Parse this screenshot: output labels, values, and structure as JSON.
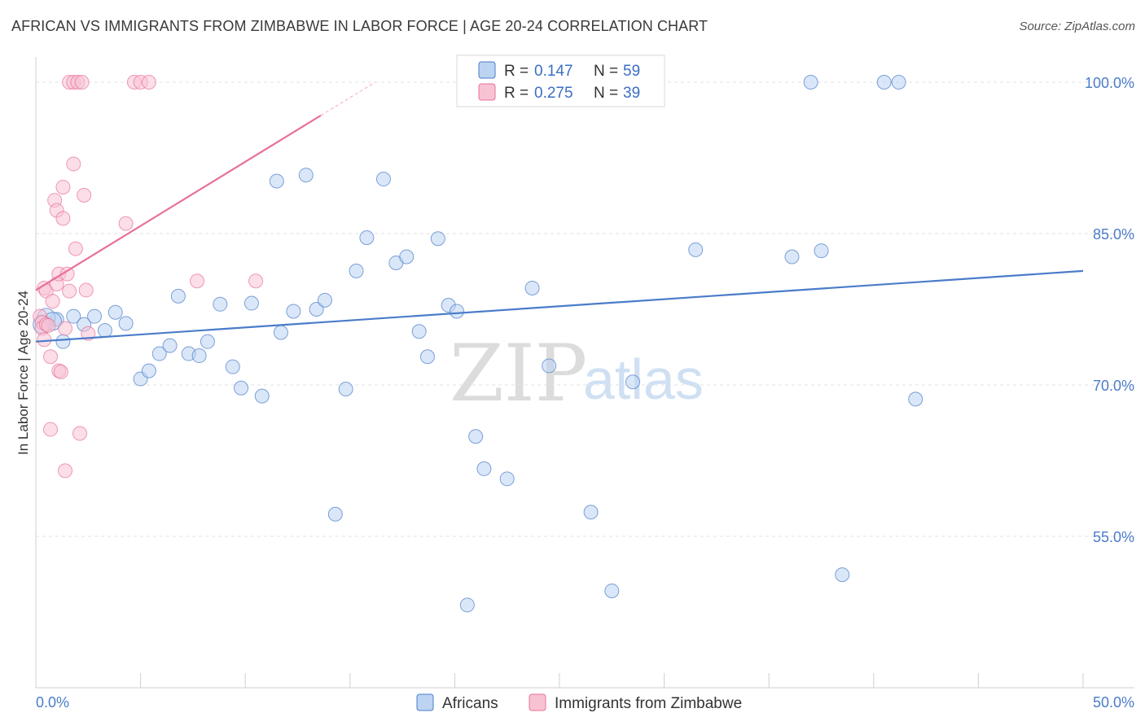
{
  "title": "AFRICAN VS IMMIGRANTS FROM ZIMBABWE IN LABOR FORCE | AGE 20-24 CORRELATION CHART",
  "source": "Source: ZipAtlas.com",
  "watermark": {
    "part1": "ZIP",
    "part2": "atlas"
  },
  "colors": {
    "blue": "#4a7cc9",
    "blue_fill": "#bcd4f2",
    "pink": "#e8729a",
    "pink_fill": "#f7c3d3"
  },
  "chart_data": {
    "type": "scatter",
    "title": "AFRICAN VS IMMIGRANTS FROM ZIMBABWE IN LABOR FORCE | AGE 20-24 CORRELATION CHART",
    "xlabel": "",
    "ylabel": "In Labor Force | Age 20-24",
    "xlim": [
      0,
      50
    ],
    "ylim": [
      40,
      102.5
    ],
    "x_tick_labels": [
      "0.0%",
      "50.0%"
    ],
    "y_ticks": [
      55,
      70,
      85,
      100
    ],
    "y_tick_labels": [
      "55.0%",
      "70.0%",
      "85.0%",
      "100.0%"
    ],
    "grid": true,
    "legend": {
      "position": "top-center",
      "entries": [
        {
          "series": "Africans",
          "r_label": "R =",
          "r": "0.147",
          "n_label": "N =",
          "n": "59"
        },
        {
          "series": "Immigrants from Zimbabwe",
          "r_label": "R =",
          "r": "0.275",
          "n_label": "N =",
          "n": "39"
        }
      ]
    },
    "bottom_legend": [
      "Africans",
      "Immigrants from Zimbabwe"
    ],
    "series": [
      {
        "name": "Africans",
        "color": "#4a7cc9",
        "trend": {
          "x": [
            0,
            50
          ],
          "y": [
            74.3,
            81.3
          ]
        },
        "points": [
          [
            1.0,
            76.5
          ],
          [
            1.3,
            74.3
          ],
          [
            1.8,
            76.8
          ],
          [
            2.3,
            76.0
          ],
          [
            2.8,
            76.8
          ],
          [
            3.3,
            75.4
          ],
          [
            3.8,
            77.2
          ],
          [
            4.3,
            76.1
          ],
          [
            5.0,
            70.6
          ],
          [
            5.4,
            71.4
          ],
          [
            5.9,
            73.1
          ],
          [
            6.4,
            73.9
          ],
          [
            6.8,
            78.8
          ],
          [
            7.3,
            73.1
          ],
          [
            7.8,
            72.9
          ],
          [
            8.2,
            74.3
          ],
          [
            8.8,
            78.0
          ],
          [
            9.4,
            71.8
          ],
          [
            9.8,
            69.7
          ],
          [
            10.3,
            78.1
          ],
          [
            10.8,
            68.9
          ],
          [
            11.5,
            90.2
          ],
          [
            11.7,
            75.2
          ],
          [
            12.3,
            77.3
          ],
          [
            12.9,
            90.8
          ],
          [
            13.4,
            77.5
          ],
          [
            13.8,
            78.4
          ],
          [
            14.3,
            57.2
          ],
          [
            14.8,
            69.6
          ],
          [
            15.3,
            81.3
          ],
          [
            15.8,
            84.6
          ],
          [
            16.6,
            90.4
          ],
          [
            17.2,
            82.1
          ],
          [
            17.7,
            82.7
          ],
          [
            18.3,
            75.3
          ],
          [
            18.7,
            72.8
          ],
          [
            19.2,
            84.5
          ],
          [
            19.7,
            77.9
          ],
          [
            20.1,
            77.3
          ],
          [
            20.6,
            48.2
          ],
          [
            21.0,
            64.9
          ],
          [
            21.4,
            61.7
          ],
          [
            22.5,
            60.7
          ],
          [
            23.7,
            79.6
          ],
          [
            24.5,
            71.9
          ],
          [
            26.5,
            57.4
          ],
          [
            27.5,
            49.6
          ],
          [
            28.5,
            70.3
          ],
          [
            31.5,
            83.4
          ],
          [
            36.1,
            82.7
          ],
          [
            37.0,
            100.0
          ],
          [
            37.5,
            83.3
          ],
          [
            38.5,
            51.2
          ],
          [
            40.5,
            100.0
          ],
          [
            41.2,
            100.0
          ],
          [
            42.0,
            68.6
          ],
          [
            0.5,
            76.7
          ],
          [
            0.8,
            76.3
          ],
          [
            0.3,
            76.0
          ]
        ]
      },
      {
        "name": "Immigrants from Zimbabwe",
        "color": "#e8729a",
        "trend": {
          "x": [
            0,
            16.2
          ],
          "y": [
            79.4,
            100.0
          ]
        },
        "points": [
          [
            0.2,
            76.8
          ],
          [
            0.3,
            76.2
          ],
          [
            0.3,
            75.6
          ],
          [
            0.4,
            74.5
          ],
          [
            0.4,
            79.6
          ],
          [
            0.5,
            79.3
          ],
          [
            0.5,
            76.0
          ],
          [
            0.6,
            75.9
          ],
          [
            0.7,
            72.8
          ],
          [
            0.7,
            65.6
          ],
          [
            0.8,
            78.3
          ],
          [
            0.9,
            88.3
          ],
          [
            1.0,
            87.3
          ],
          [
            1.0,
            80.0
          ],
          [
            1.1,
            81.0
          ],
          [
            1.1,
            71.4
          ],
          [
            1.2,
            71.3
          ],
          [
            1.3,
            89.6
          ],
          [
            1.3,
            86.5
          ],
          [
            1.4,
            75.6
          ],
          [
            1.4,
            61.5
          ],
          [
            1.5,
            81.0
          ],
          [
            1.6,
            79.3
          ],
          [
            1.6,
            100.0
          ],
          [
            1.8,
            100.0
          ],
          [
            1.8,
            91.9
          ],
          [
            1.9,
            83.5
          ],
          [
            2.0,
            100.0
          ],
          [
            2.1,
            65.2
          ],
          [
            2.2,
            100.0
          ],
          [
            2.3,
            88.8
          ],
          [
            2.4,
            79.4
          ],
          [
            2.5,
            75.1
          ],
          [
            4.3,
            86.0
          ],
          [
            4.7,
            100.0
          ],
          [
            5.0,
            100.0
          ],
          [
            5.4,
            100.0
          ],
          [
            7.7,
            80.3
          ],
          [
            10.5,
            80.3
          ]
        ]
      }
    ]
  }
}
